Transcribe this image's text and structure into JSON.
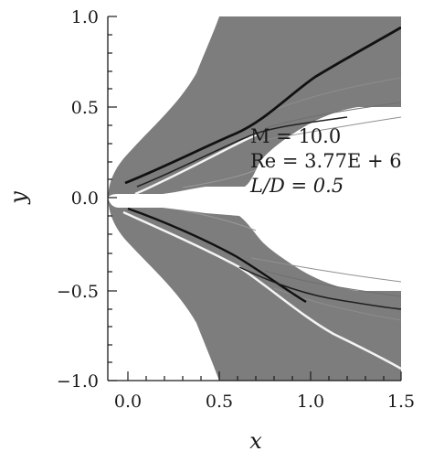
{
  "axes": {
    "x": {
      "label": "x",
      "ticks": [
        "0.0",
        "0.5",
        "1.0",
        "1.5"
      ]
    },
    "y": {
      "label": "y",
      "ticks": [
        "1.0",
        "0.5",
        "0.0",
        "−0.5",
        "−1.0"
      ]
    }
  },
  "annotation": {
    "mach": "M = 10.0",
    "reynolds": "Re = 3.77E + 6",
    "ratio": "L/D = 0.5"
  },
  "colors": {
    "field": "#7d7d7d",
    "background": "#ffffff",
    "shock_dark": "#111111",
    "shock_light": "#f4f4f4"
  }
}
